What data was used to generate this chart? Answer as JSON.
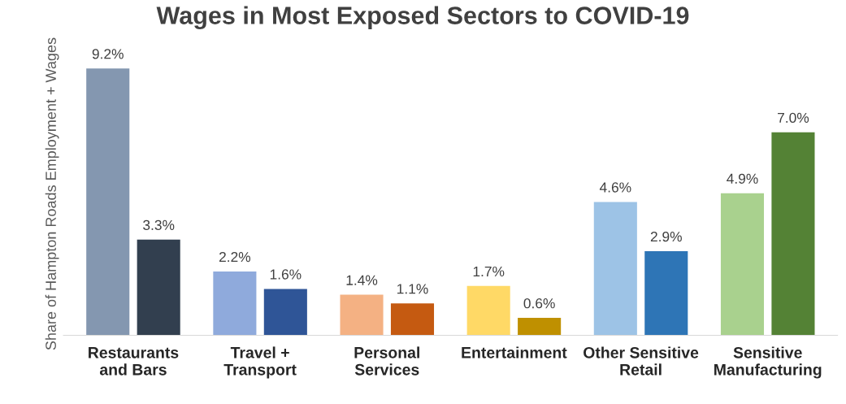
{
  "chart_data": {
    "type": "bar",
    "title": "Wages in Most Exposed Sectors to COVID-19",
    "ylabel": "Share of Hampton Roads Employment + Wages",
    "categories": [
      "Restaurants\nand Bars",
      "Travel +\nTransport",
      "Personal\nServices",
      "Entertainment",
      "Other Sensitive\nRetail",
      "Sensitive\nManufacturing"
    ],
    "series": [
      {
        "values": [
          9.2,
          2.2,
          1.4,
          1.7,
          4.6,
          4.9
        ],
        "colors": [
          "#8497b0",
          "#8faadc",
          "#f4b183",
          "#ffd966",
          "#9dc3e6",
          "#a9d18e"
        ],
        "value_labels": [
          "9.2%",
          "2.2%",
          "1.4%",
          "1.7%",
          "4.6%",
          "4.9%"
        ]
      },
      {
        "values": [
          3.3,
          1.6,
          1.1,
          0.6,
          2.9,
          7.0
        ],
        "colors": [
          "#323f4f",
          "#2f5597",
          "#c55a11",
          "#bf9000",
          "#2e75b6",
          "#548235"
        ],
        "value_labels": [
          "3.3%",
          "1.6%",
          "1.1%",
          "0.6%",
          "2.9%",
          "7.0%"
        ]
      }
    ],
    "grid": false,
    "legend": false
  }
}
